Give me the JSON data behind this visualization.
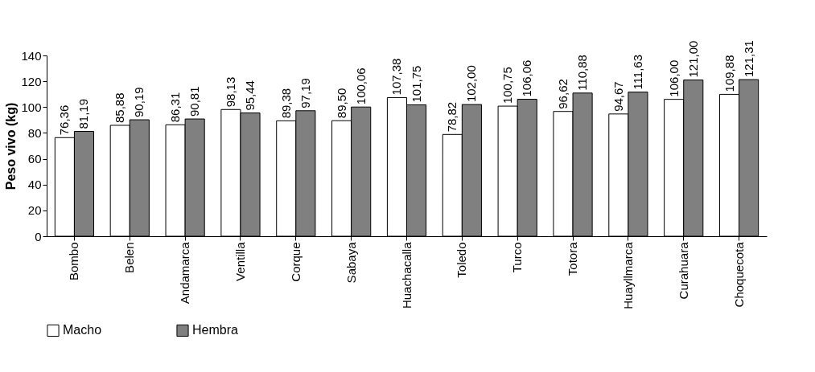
{
  "chart_data": {
    "type": "bar",
    "ylabel": "Peso vivo (kg)",
    "categories": [
      "Bombo",
      "Belen",
      "Andamarca",
      "Ventilla",
      "Corque",
      "Sabaya",
      "Huachacalla",
      "Toledo",
      "Turco",
      "Totora",
      "Huayllmarca",
      "Curahuara",
      "Choquecota"
    ],
    "series": [
      {
        "name": "Macho",
        "color": "#ffffff",
        "values": [
          76.36,
          85.88,
          86.31,
          98.13,
          89.38,
          89.5,
          107.38,
          78.82,
          100.75,
          96.62,
          94.67,
          106.0,
          109.88
        ],
        "value_labels": [
          "76,36",
          "85,88",
          "86,31",
          "98,13",
          "89,38",
          "89,50",
          "107,38",
          "78,82",
          "100,75",
          "96,62",
          "94,67",
          "106,00",
          "109,88"
        ]
      },
      {
        "name": "Hembra",
        "color": "#808080",
        "values": [
          81.19,
          90.19,
          90.81,
          95.44,
          97.19,
          100.06,
          101.75,
          102.0,
          106.06,
          110.88,
          111.63,
          121.0,
          121.31
        ],
        "value_labels": [
          "81,19",
          "90,19",
          "90,81",
          "95,44",
          "97,19",
          "100,06",
          "101,75",
          "102,00",
          "106,06",
          "110,88",
          "111,63",
          "121,00",
          "121,31"
        ]
      }
    ],
    "ylim": [
      0,
      140
    ],
    "yticks": [
      0,
      20,
      40,
      60,
      80,
      100,
      120,
      140
    ],
    "grid": false,
    "legend": "bottom"
  }
}
